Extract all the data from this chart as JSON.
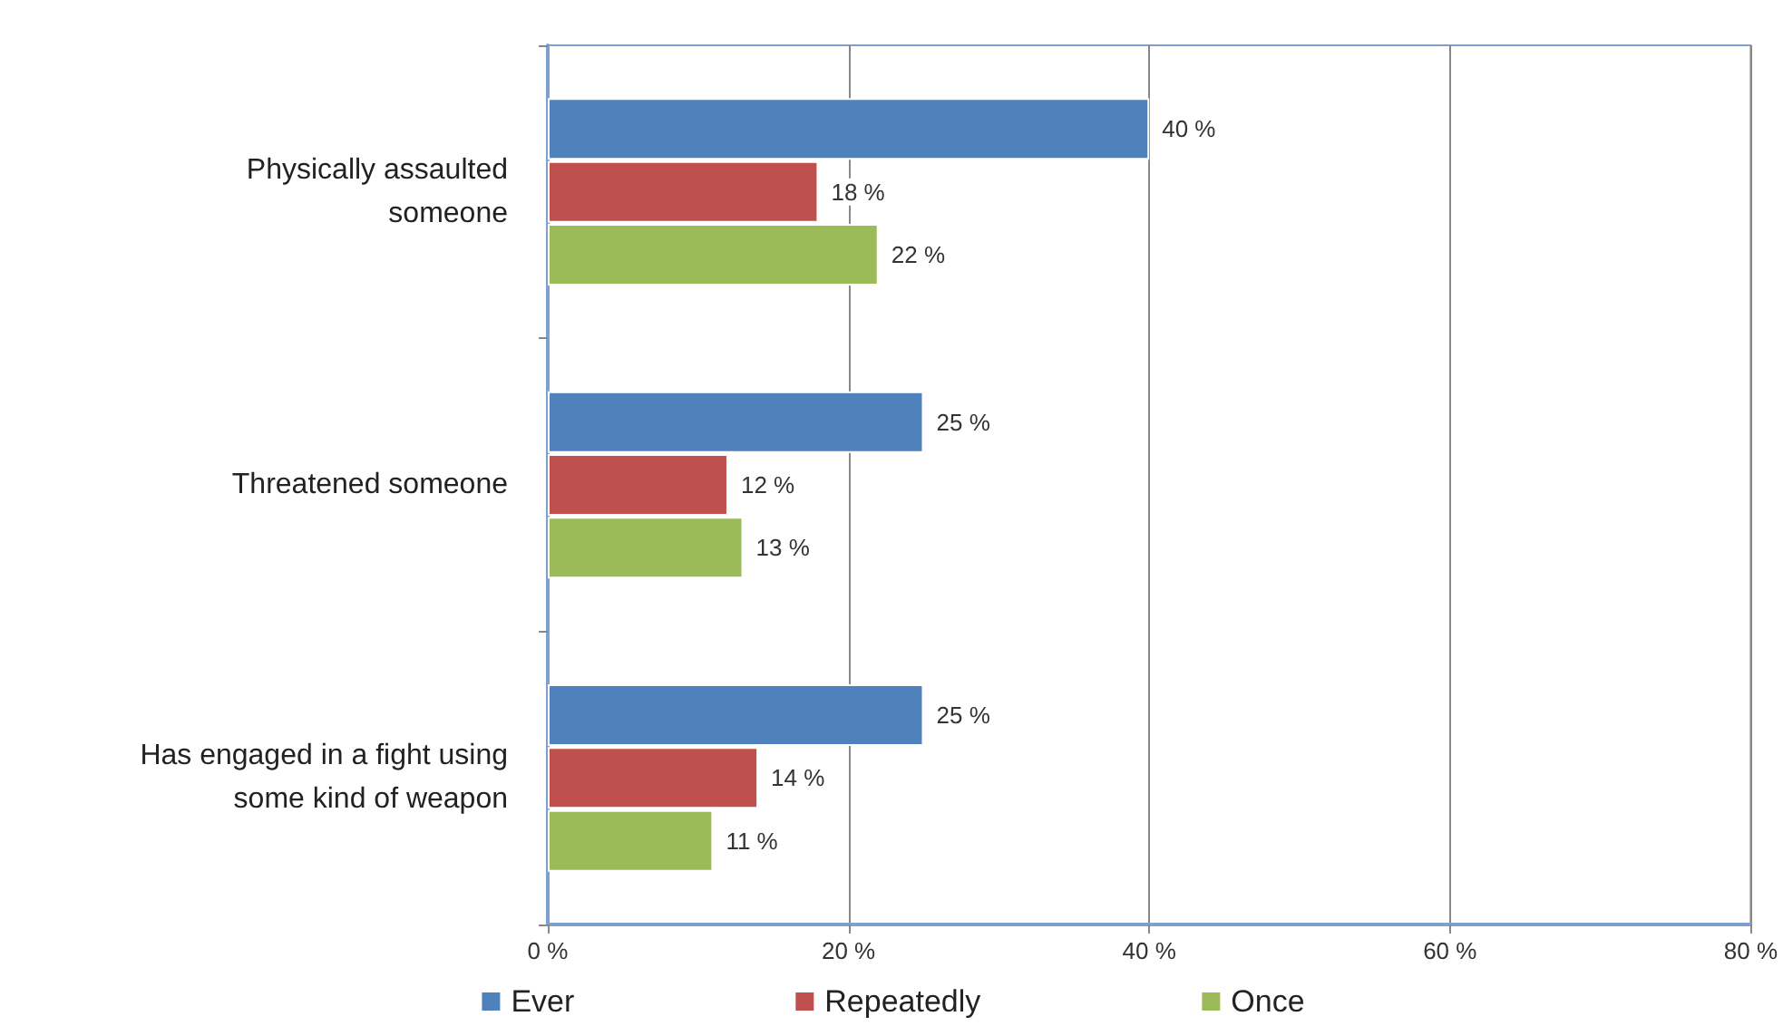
{
  "chart_data": {
    "type": "bar",
    "orientation": "horizontal",
    "categories": [
      "Physically assaulted\nsomeone",
      "Threatened someone",
      "Has engaged in a fight using\nsome kind of weapon"
    ],
    "series": [
      {
        "name": "Ever",
        "color": "#4f81bd",
        "values": [
          40,
          25,
          25
        ],
        "value_labels": [
          "40 %",
          "25 %",
          "25 %"
        ]
      },
      {
        "name": "Repeatedly",
        "color": "#c0504d",
        "values": [
          18,
          12,
          14
        ],
        "value_labels": [
          "18 %",
          "12 %",
          "14 %"
        ]
      },
      {
        "name": "Once",
        "color": "#9bbb59",
        "values": [
          22,
          13,
          11
        ],
        "value_labels": [
          "22 %",
          "13 %",
          "11 %"
        ]
      }
    ],
    "xlim": [
      0,
      80
    ],
    "xticks": [
      {
        "value": 0,
        "label": "0 %"
      },
      {
        "value": 20,
        "label": "20 %"
      },
      {
        "value": 40,
        "label": "40 %"
      },
      {
        "value": 60,
        "label": "60 %"
      },
      {
        "value": 80,
        "label": "80 %"
      }
    ],
    "grid": "x",
    "legend": "bottom"
  }
}
